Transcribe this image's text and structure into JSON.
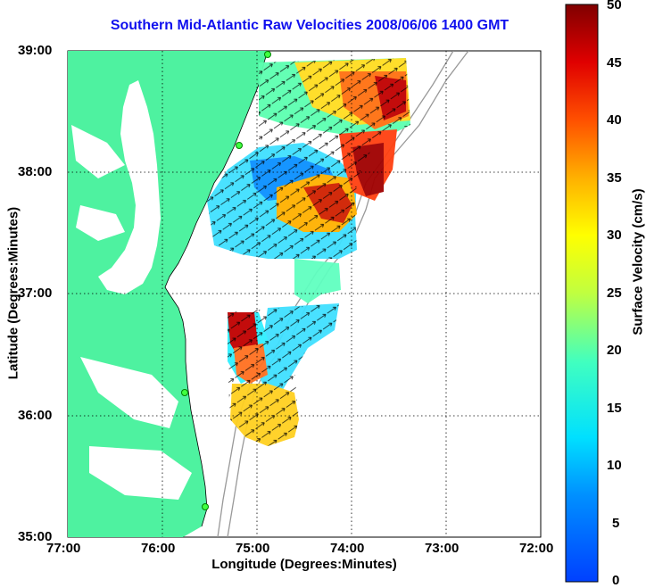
{
  "title": "Southern Mid-Atlantic Raw Velocities 2008/06/06 1400 GMT",
  "x_axis": {
    "label": "Longitude (Degrees:Minutes)",
    "ticks": [
      "77:00",
      "76:00",
      "75:00",
      "74:00",
      "73:00",
      "72:00"
    ]
  },
  "y_axis": {
    "label": "Latitude (Degrees:Minutes)",
    "ticks": [
      "39:00",
      "38:00",
      "37:00",
      "36:00",
      "35:00"
    ]
  },
  "colorbar": {
    "label": "Surface Velocity (cm/s)",
    "ticks": [
      "50",
      "45",
      "40",
      "35",
      "30",
      "25",
      "20",
      "15",
      "10",
      "5",
      "0"
    ],
    "min": 0,
    "max": 50
  },
  "chart_data": {
    "type": "heatmap",
    "title": "Southern Mid-Atlantic Raw Velocities 2008/06/06 1400 GMT",
    "xlabel": "Longitude (Degrees:Minutes)",
    "ylabel": "Latitude (Degrees:Minutes)",
    "xlim": [
      -77,
      -72
    ],
    "ylim": [
      35,
      39
    ],
    "grid": true,
    "colorbar_label": "Surface Velocity (cm/s)",
    "colorbar_range": [
      0,
      50
    ]
  },
  "colors": {
    "land": "#4ef2a0",
    "title": "#1010ee"
  }
}
